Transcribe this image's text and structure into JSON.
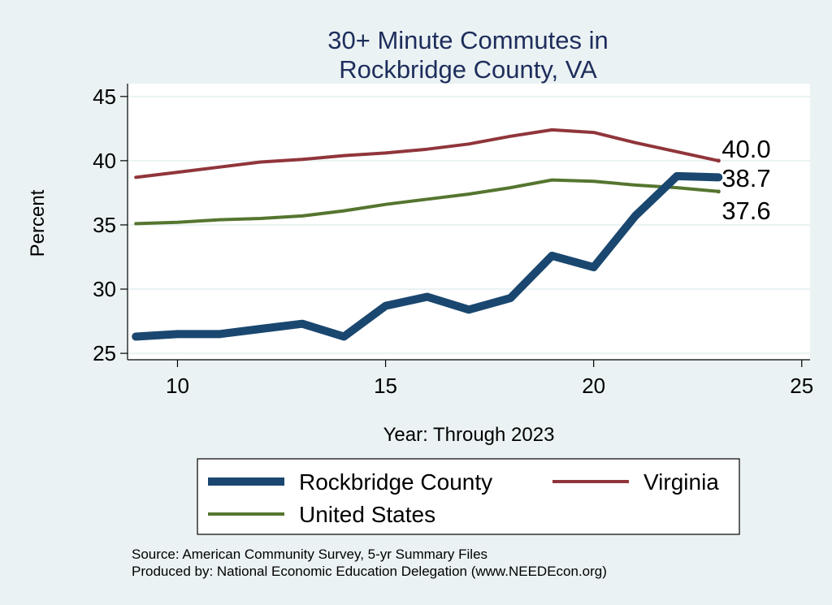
{
  "chart_data": {
    "type": "line",
    "title_lines": [
      "30+ Minute Commutes in",
      "Rockbridge County, VA"
    ],
    "xlabel": "Year: Through 2023",
    "ylabel": "Percent",
    "xlim": [
      8.8,
      25.2
    ],
    "ylim": [
      24.5,
      46
    ],
    "xticks": [
      10,
      15,
      20,
      25
    ],
    "yticks": [
      25,
      30,
      35,
      40,
      45
    ],
    "grid": true,
    "legend_position": "bottom",
    "series": [
      {
        "name": "Rockbridge County",
        "color": "#1a476f",
        "x": [
          9,
          10,
          11,
          12,
          13,
          14,
          15,
          16,
          17,
          18,
          19,
          20,
          21,
          22,
          23
        ],
        "values": [
          26.3,
          26.5,
          26.5,
          26.9,
          27.3,
          26.3,
          28.7,
          29.4,
          28.4,
          29.3,
          32.6,
          31.7,
          35.7,
          38.8,
          38.7
        ],
        "end_label": "38.7"
      },
      {
        "name": "Virginia",
        "color": "#90353b",
        "x": [
          9,
          10,
          11,
          12,
          13,
          14,
          15,
          16,
          17,
          18,
          19,
          20,
          21,
          22,
          23
        ],
        "values": [
          38.7,
          39.1,
          39.5,
          39.9,
          40.1,
          40.4,
          40.6,
          40.9,
          41.3,
          41.9,
          42.4,
          42.2,
          41.4,
          40.7,
          40.0
        ],
        "end_label": "40.0"
      },
      {
        "name": "United States",
        "color": "#55752f",
        "x": [
          9,
          10,
          11,
          12,
          13,
          14,
          15,
          16,
          17,
          18,
          19,
          20,
          21,
          22,
          23
        ],
        "values": [
          35.1,
          35.2,
          35.4,
          35.5,
          35.7,
          36.1,
          36.6,
          37.0,
          37.4,
          37.9,
          38.5,
          38.4,
          38.1,
          37.9,
          37.6
        ],
        "end_label": "37.6"
      }
    ],
    "source_lines": [
      "Source: American Community Survey, 5-yr Summary Files",
      "Produced by: National Economic Education Delegation (www.NEEDEcon.org)"
    ]
  }
}
